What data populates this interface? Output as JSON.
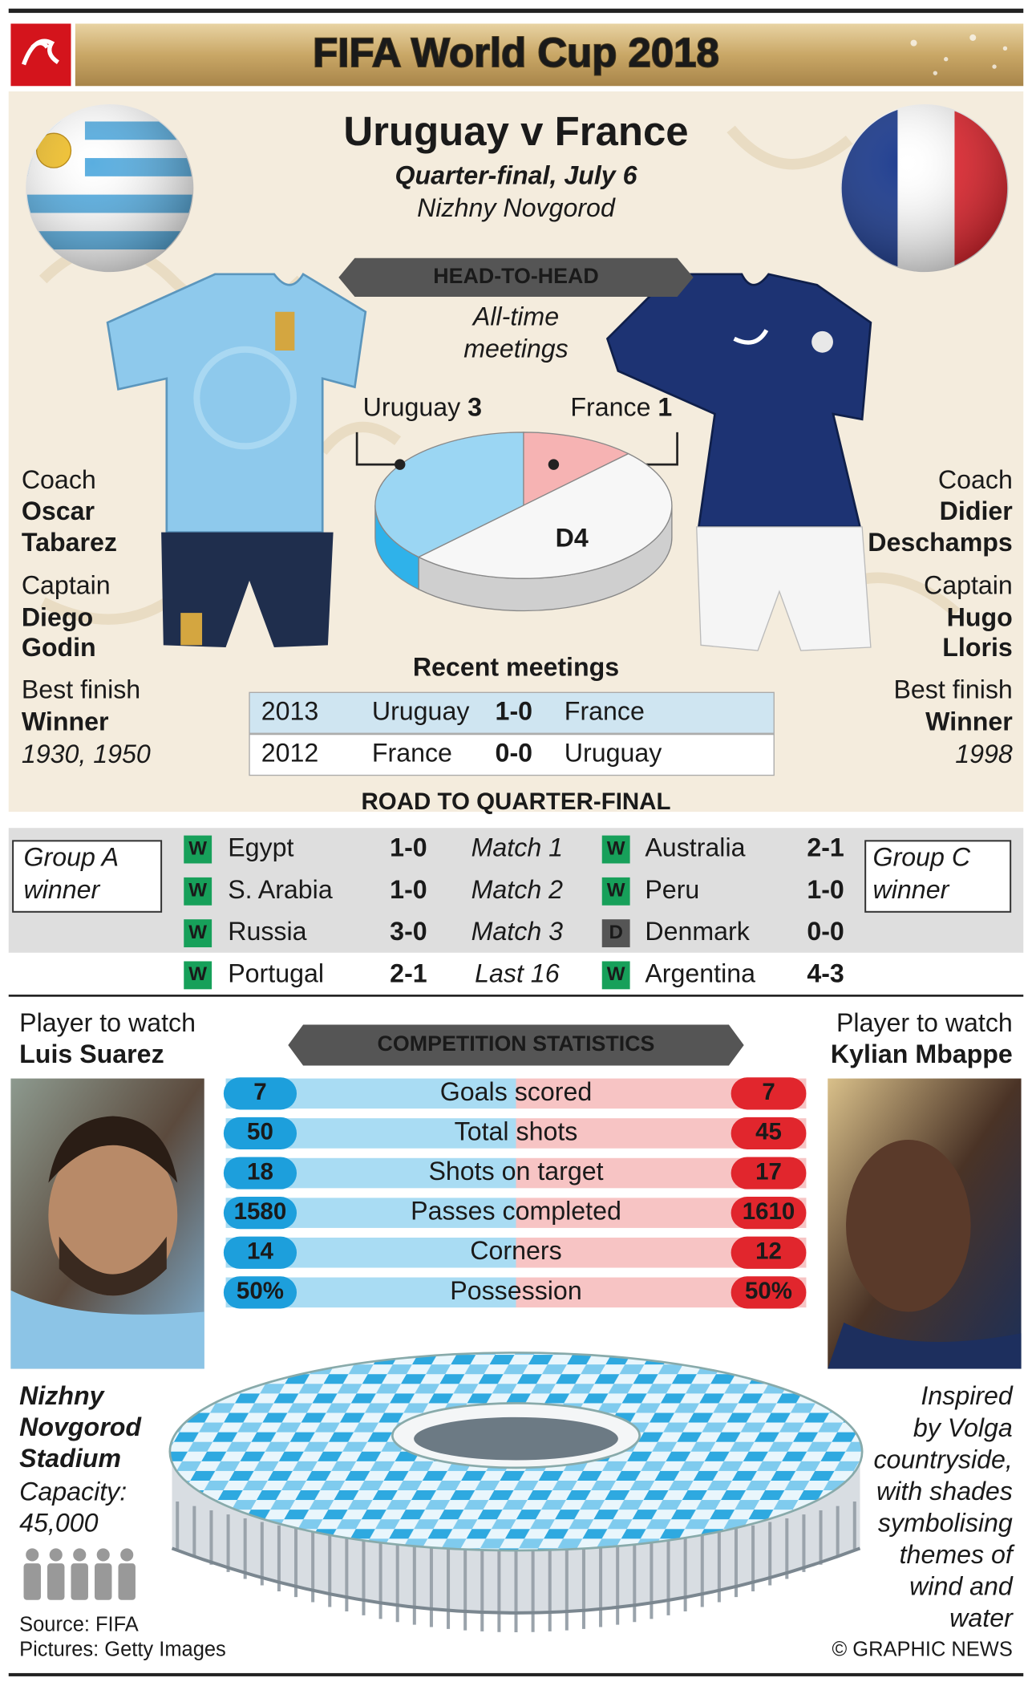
{
  "header": {
    "title": "FIFA World Cup 2018"
  },
  "match": {
    "title": "Uruguay v France",
    "round": "Quarter-final, July 6",
    "venue": "Nizhny Novgorod"
  },
  "head_to_head": {
    "title": "HEAD-TO-HEAD",
    "subtitle": [
      "All-time",
      "meetings"
    ],
    "uruguay": {
      "team": "Uruguay",
      "wins": 3
    },
    "france": {
      "team": "France",
      "wins": 1
    },
    "draws": {
      "value": 4,
      "label": "D4"
    }
  },
  "uruguay": {
    "coach_label": "Coach",
    "coach": [
      "Oscar",
      "Tabarez"
    ],
    "captain_label": "Captain",
    "captain": [
      "Diego",
      "Godin"
    ],
    "best_label": "Best finish",
    "best": "Winner",
    "best_years": "1930, 1950"
  },
  "france": {
    "coach_label": "Coach",
    "coach": [
      "Didier",
      "Deschamps"
    ],
    "captain_label": "Captain",
    "captain": [
      "Hugo",
      "Lloris"
    ],
    "best_label": "Best finish",
    "best": "Winner",
    "best_years": "1998"
  },
  "recent": {
    "title": "Recent meetings",
    "rows": [
      [
        "2013",
        "Uruguay",
        "1-0",
        "France"
      ],
      [
        "2012",
        "France",
        "0-0",
        "Uruguay"
      ]
    ]
  },
  "road": {
    "title": "ROAD TO QUARTER-FINAL",
    "left_group": [
      "Group A",
      "winner"
    ],
    "right_group": [
      "Group C",
      "winner"
    ],
    "rows": [
      {
        "left_result": "W",
        "left_team": "Egypt",
        "left_score": "1-0",
        "stage": "Match 1",
        "right_result": "W",
        "right_team": "Australia",
        "right_score": "2-1"
      },
      {
        "left_result": "W",
        "left_team": "S. Arabia",
        "left_score": "1-0",
        "stage": "Match 2",
        "right_result": "W",
        "right_team": "Peru",
        "right_score": "1-0"
      },
      {
        "left_result": "W",
        "left_team": "Russia",
        "left_score": "3-0",
        "stage": "Match 3",
        "right_result": "D",
        "right_team": "Denmark",
        "right_score": "0-0"
      },
      {
        "left_result": "W",
        "left_team": "Portugal",
        "left_score": "2-1",
        "stage": "Last 16",
        "right_result": "W",
        "right_team": "Argentina",
        "right_score": "4-3"
      }
    ]
  },
  "players": {
    "left": {
      "label": "Player to watch",
      "name": "Luis Suarez"
    },
    "right": {
      "label": "Player to watch",
      "name": "Kylian Mbappe"
    }
  },
  "stats": {
    "title": "COMPETITION STATISTICS",
    "rows": [
      {
        "uruguay": "7",
        "label": "Goals scored",
        "france": "7"
      },
      {
        "uruguay": "50",
        "label": "Total shots",
        "france": "45"
      },
      {
        "uruguay": "18",
        "label": "Shots on target",
        "france": "17"
      },
      {
        "uruguay": "1580",
        "label": "Passes completed",
        "france": "1610"
      },
      {
        "uruguay": "14",
        "label": "Corners",
        "france": "12"
      },
      {
        "uruguay": "50%",
        "label": "Possession",
        "france": "50%"
      }
    ]
  },
  "stadium": {
    "name": [
      "Nizhny",
      "Novgorod",
      "Stadium"
    ],
    "capacity_label": "Capacity:",
    "capacity": "45,000",
    "description": [
      "Inspired",
      "by Volga",
      "countryside,",
      "with shades",
      "symbolising",
      "themes of",
      "wind and",
      "water"
    ]
  },
  "footer": {
    "source": "Source: FIFA",
    "pictures": "Pictures: Getty Images",
    "credit": "© GRAPHIC NEWS"
  }
}
